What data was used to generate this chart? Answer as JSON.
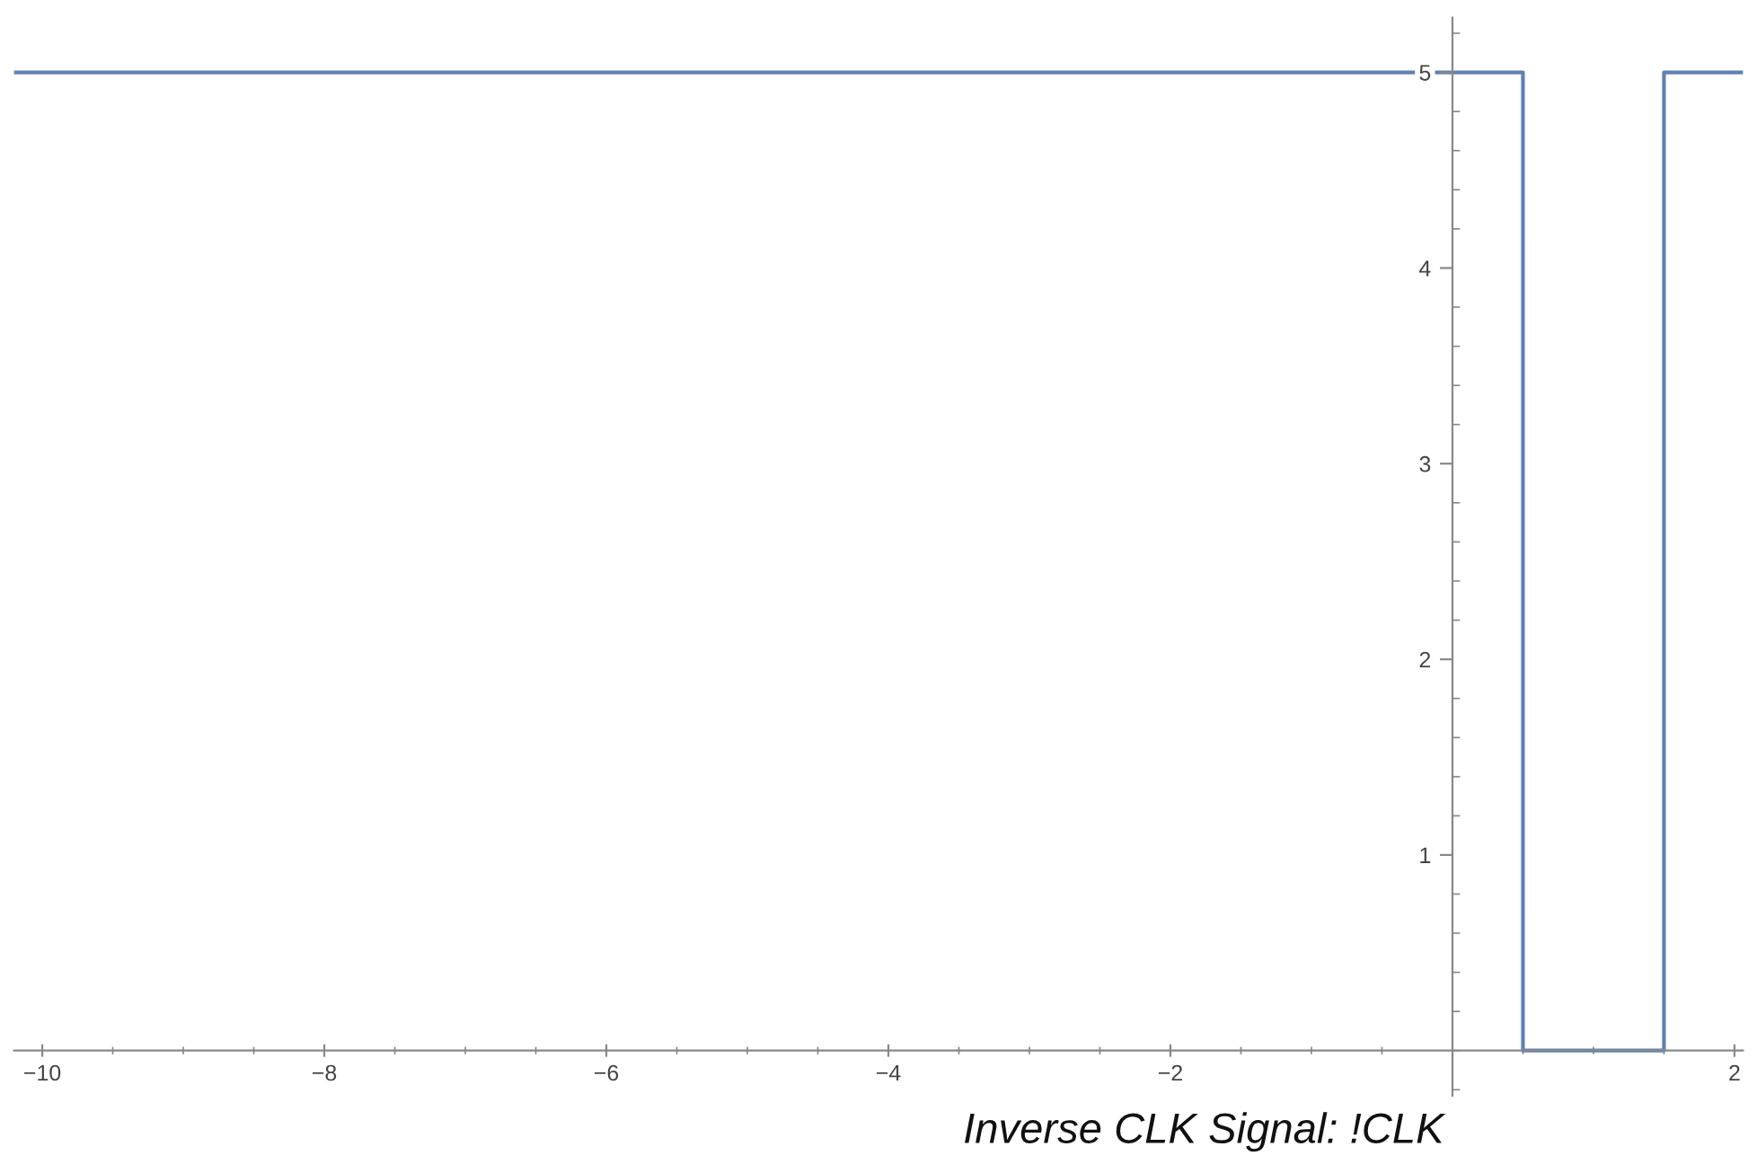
{
  "chart_data": {
    "type": "step",
    "x": [
      -10.2,
      0.5,
      1.5,
      2.06
    ],
    "series": [
      {
        "color": "#5e81b5",
        "values": [
          5,
          0,
          5,
          5
        ]
      }
    ],
    "xlim": [
      -10.2,
      2.06
    ],
    "ylim": [
      -0.23,
      5.28
    ],
    "xticks": [
      {
        "value": -10,
        "label": "−10"
      },
      {
        "value": -8,
        "label": "−8"
      },
      {
        "value": -6,
        "label": "−6"
      },
      {
        "value": -4,
        "label": "−4"
      },
      {
        "value": -2,
        "label": "−2"
      },
      2
    ],
    "yticks": [
      1,
      2,
      3,
      4,
      5
    ],
    "grid": false,
    "legend": false,
    "annotations": [
      "Inverse CLK Signal: !CLK"
    ]
  }
}
